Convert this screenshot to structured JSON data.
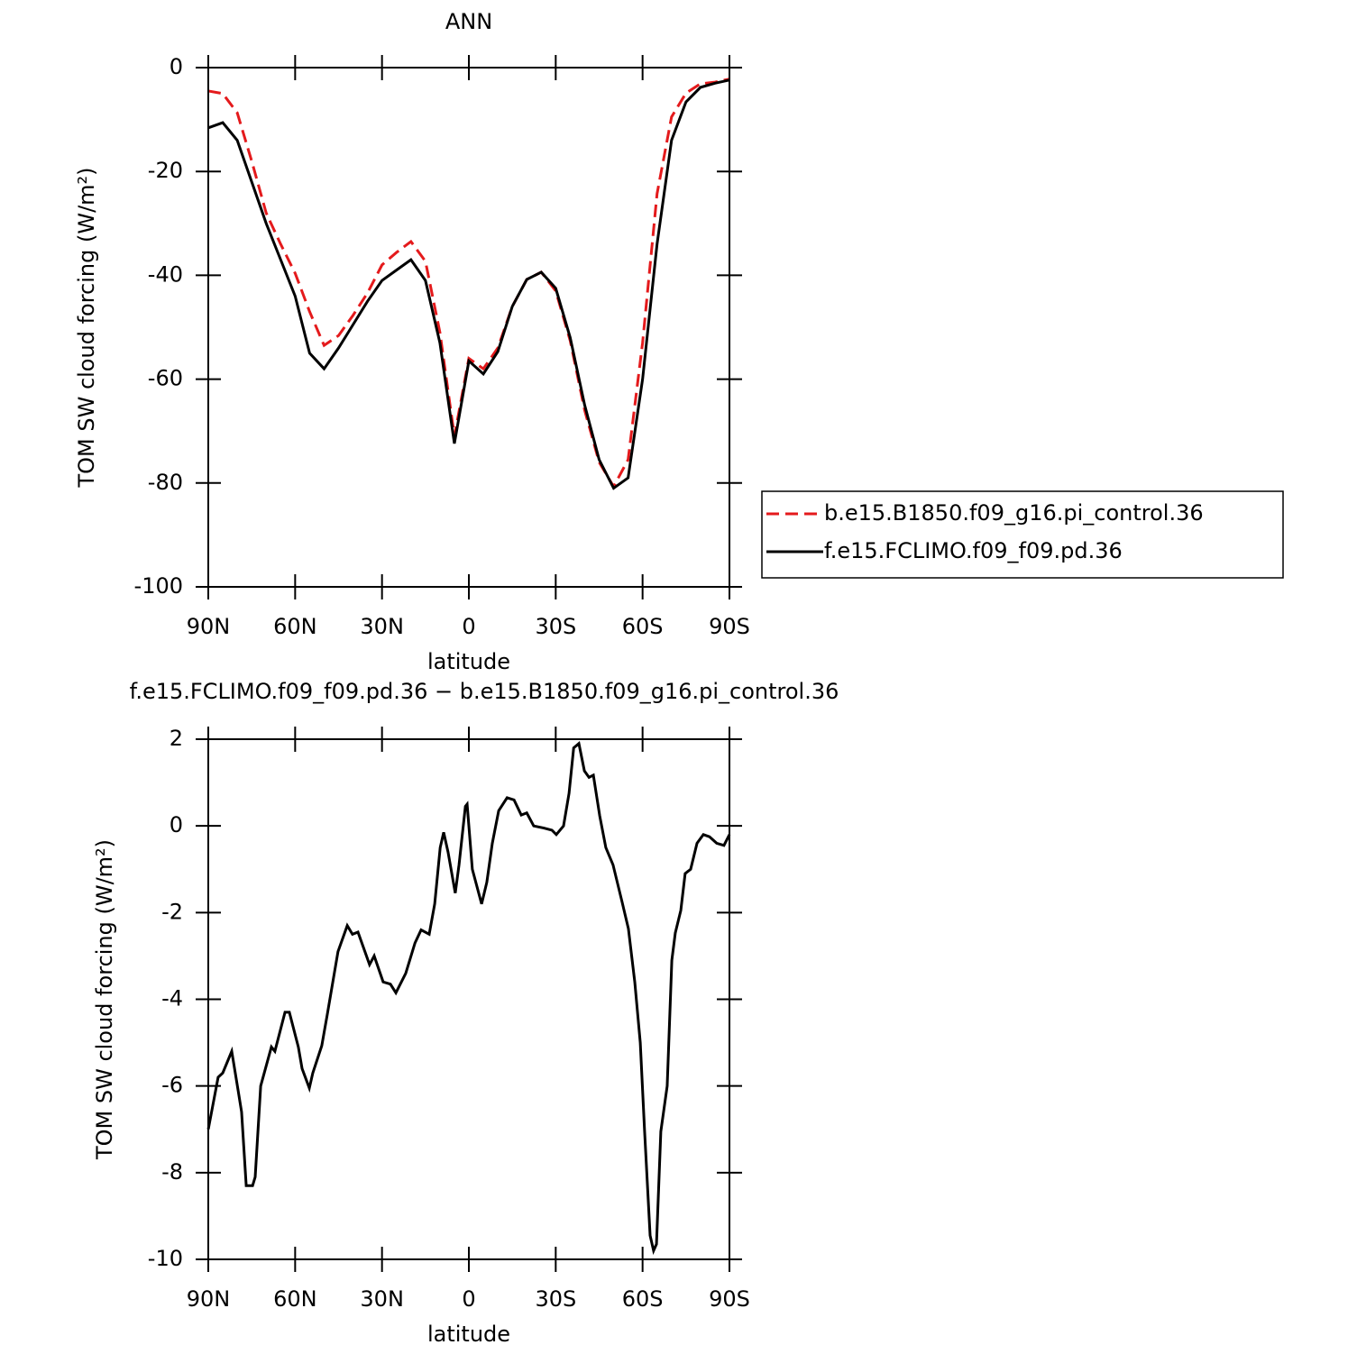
{
  "chart_data": [
    {
      "type": "line",
      "title": "ANN",
      "x_label": "latitude",
      "y_label": "TOM SW cloud forcing (W/m²)",
      "x": [
        90,
        85,
        80,
        75,
        70,
        65,
        60,
        55,
        50,
        45,
        40,
        35,
        30,
        25,
        20,
        15,
        10,
        5,
        0,
        -5,
        -10,
        -15,
        -20,
        -25,
        -30,
        -35,
        -40,
        -45,
        -50,
        -55,
        -60,
        -65,
        -70,
        -75,
        -80,
        -85,
        -90
      ],
      "xlim": [
        90,
        -90
      ],
      "xticks": [
        {
          "value": 90,
          "label": "90N"
        },
        {
          "value": 60,
          "label": "60N"
        },
        {
          "value": 30,
          "label": "30N"
        },
        0,
        {
          "value": -30,
          "label": "30S"
        },
        {
          "value": -60,
          "label": "60S"
        },
        {
          "value": -90,
          "label": "90S"
        }
      ],
      "ylim": [
        -100,
        0
      ],
      "yticks": [
        0,
        -20,
        -40,
        -60,
        -80,
        -100
      ],
      "legend": "right",
      "series": [
        {
          "name": "b.e15.B1850.f09_g16.pi_control.36",
          "color": "#e41a1c",
          "linestyle": "dashed",
          "values": [
            -4.5,
            -5,
            -8.7,
            -18,
            -28,
            -34,
            -39.6,
            -47,
            -53.5,
            -51.6,
            -47.7,
            -43.4,
            -38,
            -35.6,
            -33.5,
            -37.3,
            -51,
            -71,
            -56,
            -58,
            -54,
            -46,
            -40.8,
            -39.4,
            -43,
            -52.6,
            -66,
            -76,
            -80.7,
            -75.5,
            -53,
            -24.3,
            -9.5,
            -4.9,
            -3.1,
            -2.8,
            -2.2
          ]
        },
        {
          "name": "f.e15.FCLIMO.f09_f09.pd.36",
          "color": "#000000",
          "linestyle": "solid",
          "values": [
            -11.6,
            -10.6,
            -14,
            -22,
            -30,
            -37,
            -44,
            -55,
            -58,
            -54,
            -49.5,
            -45,
            -41,
            -39,
            -37,
            -41,
            -53,
            -72.4,
            -56.5,
            -59,
            -54.7,
            -46,
            -40.8,
            -39.4,
            -42.5,
            -52,
            -65,
            -75.5,
            -81,
            -79,
            -60,
            -34,
            -14,
            -6.6,
            -3.8,
            -3,
            -2.4
          ]
        }
      ]
    },
    {
      "type": "line",
      "title": "f.e15.FCLIMO.f09_f09.pd.36 − b.e15.B1850.f09_g16.pi_control.36",
      "x_label": "latitude",
      "y_label": "TOM SW cloud forcing (W/m²)",
      "x": [
        90,
        86.6,
        85,
        81.9,
        79.7,
        78.5,
        76.9,
        74.7,
        73.8,
        71.9,
        68.2,
        67,
        63.5,
        62,
        58.9,
        57.6,
        55.1,
        53.9,
        50.8,
        48.9,
        45.2,
        42,
        40.2,
        38.3,
        34.3,
        32.7,
        29.6,
        27.1,
        25.2,
        21.8,
        18.6,
        16.5,
        13.7,
        11.8,
        9.9,
        8.7,
        7.2,
        4.7,
        3.4,
        1.2,
        0.6,
        -1.2,
        -4.4,
        -6.2,
        -8.1,
        -10.3,
        -13.2,
        -15.6,
        -18.1,
        -20,
        -22.4,
        -25.9,
        -28.7,
        -30.2,
        -32.7,
        -34.6,
        -36.2,
        -38,
        -39.9,
        -41.5,
        -43,
        -45.2,
        -47.3,
        -49.8,
        -52.9,
        -55.1,
        -57.3,
        -59.2,
        -60.7,
        -62.6,
        -63.8,
        -64.8,
        -66.3,
        -68.5,
        -70.1,
        -71.3,
        -73.2,
        -74.7,
        -76.6,
        -78.8,
        -81,
        -83.1,
        -85.6,
        -88.1,
        -90
      ],
      "values": [
        -7,
        -5.8,
        -5.7,
        -5.2,
        -6.1,
        -6.6,
        -8.3,
        -8.3,
        -8.1,
        -6,
        -5.1,
        -5.2,
        -4.3,
        -4.3,
        -5.1,
        -5.6,
        -6.05,
        -5.7,
        -5.07,
        -4.35,
        -2.9,
        -2.3,
        -2.5,
        -2.45,
        -3.2,
        -3,
        -3.6,
        -3.65,
        -3.85,
        -3.4,
        -2.7,
        -2.4,
        -2.5,
        -1.8,
        -0.5,
        -0.15,
        -0.6,
        -1.55,
        -0.9,
        0.45,
        0.5,
        -1,
        -1.8,
        -1.3,
        -0.4,
        0.35,
        0.65,
        0.6,
        0.25,
        0.3,
        0,
        -0.05,
        -0.1,
        -0.2,
        0,
        0.75,
        1.8,
        1.9,
        1.27,
        1.12,
        1.17,
        0.23,
        -0.5,
        -0.9,
        -1.75,
        -2.37,
        -3.6,
        -5,
        -7.05,
        -9.45,
        -9.8,
        -9.65,
        -7.05,
        -6,
        -3.1,
        -2.47,
        -1.95,
        -1.1,
        -1,
        -0.4,
        -0.2,
        -0.25,
        -0.4,
        -0.45,
        -0.2
      ],
      "color": "#000000",
      "xlim": [
        90,
        -90
      ],
      "xticks": [
        {
          "value": 90,
          "label": "90N"
        },
        {
          "value": 60,
          "label": "60N"
        },
        {
          "value": 30,
          "label": "30N"
        },
        0,
        {
          "value": -30,
          "label": "30S"
        },
        {
          "value": -60,
          "label": "60S"
        },
        {
          "value": -90,
          "label": "90S"
        }
      ],
      "ylim": [
        -10,
        2
      ],
      "yticks": [
        2,
        0,
        -2,
        -4,
        -6,
        -8,
        -10
      ]
    }
  ]
}
